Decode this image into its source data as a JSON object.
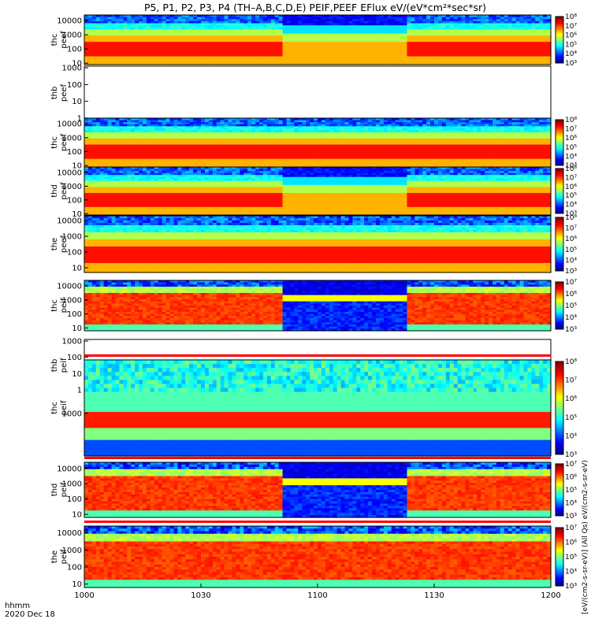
{
  "chart_data": {
    "type": "heatmap",
    "title": "P5, P1, P2, P3, P4 (TH–A,B,C,D,E) PEIF,PEEF EFlux eV/(eV*cm²*sec*sr)",
    "x_ticks": [
      "1000",
      "1030",
      "1100",
      "1130",
      "1200"
    ],
    "x_range_minutes": [
      0,
      120
    ],
    "footer": [
      "hhmm",
      "2020 Dec 18"
    ],
    "colorbar_label": "[eV/(cm2-s-sr-eV)] (All Qs) eV/(cm2-s-sr-eV)",
    "panels": [
      {
        "name": "thc peef",
        "line1": "thc",
        "line2": "peef",
        "yticks": [
          "10",
          "100",
          "1000",
          "10000"
        ],
        "ylog": [
          0.9,
          4.4
        ],
        "cb": {
          "min": 3,
          "max": 8,
          "ticks": [
            "10³",
            "10⁴",
            "10⁵",
            "10⁶",
            "10⁷",
            "10⁸"
          ]
        },
        "scheme": "eflux_gap",
        "gap_minutes": [
          51,
          82
        ]
      },
      {
        "name": "thb peef",
        "line1": "thb",
        "line2": "peef",
        "yticks": [
          "1",
          "10",
          "100",
          "1000"
        ],
        "ylog": [
          -0.1,
          3.1
        ],
        "cb": null,
        "scheme": "empty"
      },
      {
        "name": "thc peef",
        "line1": "thc",
        "line2": "peef",
        "yticks": [
          "10",
          "100",
          "1000",
          "10000"
        ],
        "ylog": [
          0.9,
          4.4
        ],
        "cb": {
          "min": 3,
          "max": 8,
          "ticks": [
            "10³",
            "10⁴",
            "10⁵",
            "10⁶",
            "10⁷",
            "10⁸"
          ]
        },
        "scheme": "eflux"
      },
      {
        "name": "thd peef",
        "line1": "thd",
        "line2": "peef",
        "yticks": [
          "10",
          "100",
          "1000",
          "10000"
        ],
        "ylog": [
          0.9,
          4.4
        ],
        "cb": {
          "min": 3,
          "max": 8,
          "ticks": [
            "10³",
            "10⁴",
            "10⁵",
            "10⁶",
            "10⁷",
            "10⁸"
          ]
        },
        "scheme": "eflux_gap",
        "gap_minutes": [
          51,
          82
        ]
      },
      {
        "name": "the peef",
        "line1": "the",
        "line2": "peef",
        "yticks": [
          "10",
          "100",
          "1000",
          "10000"
        ],
        "ylog": [
          0.7,
          4.3
        ],
        "cb": {
          "min": 3,
          "max": 8,
          "ticks": [
            "10³",
            "10⁴",
            "10⁵",
            "10⁶",
            "10⁷",
            "10⁸"
          ]
        },
        "scheme": "eflux"
      },
      {
        "name": "thc peif",
        "line1": "thc",
        "line2": "peif",
        "yticks": [
          "10",
          "100",
          "1000",
          "10000"
        ],
        "ylog": [
          0.8,
          4.4
        ],
        "cb": {
          "min": 3,
          "max": 7,
          "ticks": [
            "10³",
            "10⁴",
            "10⁵",
            "10⁶",
            "10⁷"
          ]
        },
        "scheme": "ion_gap",
        "gap_minutes": [
          51,
          82
        ]
      },
      {
        "name": "thb peif",
        "line1": "thb",
        "line2": "peif",
        "yticks": [
          "1",
          "10",
          "100",
          "1000"
        ],
        "ylog": [
          -0.1,
          3.1
        ],
        "cb": null,
        "scheme": "empty"
      },
      {
        "name": "thc peif",
        "line1": "thc",
        "line2": "peif",
        "yticks": [
          "1000"
        ],
        "ylog": [
          2.2,
          4.0
        ],
        "cb": {
          "min": 3,
          "max": 8,
          "ticks": [
            "10³",
            "10⁴",
            "10⁵",
            "10⁶",
            "10⁷",
            "10⁸"
          ]
        },
        "scheme": "ion_band"
      },
      {
        "name": "thd peif",
        "line1": "thd",
        "line2": "peif",
        "yticks": [
          "10",
          "100",
          "1000",
          "10000"
        ],
        "ylog": [
          0.8,
          4.4
        ],
        "cb": {
          "min": 3,
          "max": 7,
          "ticks": [
            "10³",
            "10⁴",
            "10⁵",
            "10⁶",
            "10⁷"
          ]
        },
        "scheme": "ion_gap",
        "gap_minutes": [
          51,
          82
        ]
      },
      {
        "name": "the peif",
        "line1": "the",
        "line2": "peif",
        "yticks": [
          "10",
          "100",
          "1000",
          "10000"
        ],
        "ylog": [
          0.8,
          4.4
        ],
        "cb": {
          "min": 3,
          "max": 7,
          "ticks": [
            "10³",
            "10⁴",
            "10⁵",
            "10⁶",
            "10⁷"
          ]
        },
        "scheme": "ion"
      }
    ]
  }
}
